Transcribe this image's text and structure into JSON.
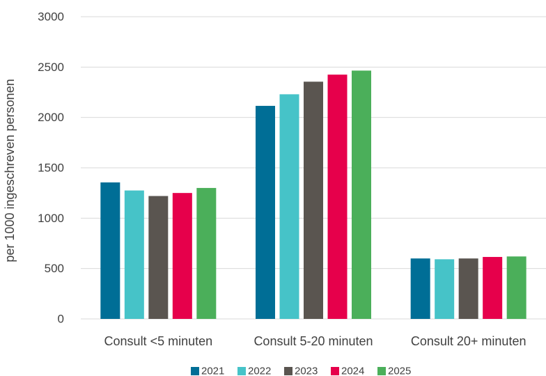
{
  "chart_data": {
    "type": "bar",
    "categories": [
      "Consult <5 minuten",
      "Consult 5-20 minuten",
      "Consult 20+ minuten"
    ],
    "series": [
      {
        "name": "2021",
        "color": "#006E96",
        "values": [
          1355,
          2115,
          600
        ]
      },
      {
        "name": "2022",
        "color": "#46C3C8",
        "values": [
          1275,
          2230,
          592
        ]
      },
      {
        "name": "2023",
        "color": "#5A5550",
        "values": [
          1220,
          2355,
          600
        ]
      },
      {
        "name": "2024",
        "color": "#E6004B",
        "values": [
          1250,
          2425,
          615
        ]
      },
      {
        "name": "2025",
        "color": "#4BAF5A",
        "values": [
          1300,
          2465,
          620
        ]
      }
    ],
    "title": "",
    "xlabel": "",
    "ylabel": "per 1000 ingeschreven personen",
    "ylim": [
      0,
      3000
    ],
    "yticks": [
      0,
      500,
      1000,
      1500,
      2000,
      2500,
      3000
    ],
    "grid": true,
    "legend_position": "bottom"
  }
}
